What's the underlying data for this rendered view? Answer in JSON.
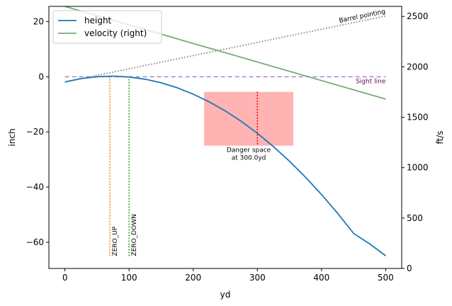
{
  "chart_data": {
    "type": "line",
    "title": "",
    "xlabel": "yd",
    "ylabel": "inch",
    "ylabel_right": "ft/s",
    "xlim": [
      -25,
      525
    ],
    "ylim": [
      -69.5,
      25.5
    ],
    "ylim_right": [
      0,
      2600
    ],
    "xticks": [
      0,
      100,
      200,
      300,
      400,
      500
    ],
    "yticks": [
      -60,
      -40,
      -20,
      0,
      20
    ],
    "yticks_right": [
      0,
      500,
      1000,
      1500,
      2000,
      2500
    ],
    "xtick_labels": [
      "0",
      "100",
      "200",
      "300",
      "400",
      "500"
    ],
    "ytick_labels": [
      "−60",
      "−40",
      "−20",
      "0",
      "20"
    ],
    "ytick_right_labels": [
      "0",
      "500",
      "1000",
      "1500",
      "2000",
      "2500"
    ],
    "grid": false,
    "legend_position": "top-left",
    "legend": [
      "height",
      "velocity (right)"
    ],
    "series": [
      {
        "name": "height",
        "axis": "left",
        "color": "#1f77b4",
        "x": [
          0,
          25,
          50,
          75,
          100,
          125,
          150,
          175,
          200,
          225,
          250,
          275,
          300,
          325,
          350,
          375,
          400,
          425,
          450,
          475,
          500
        ],
        "y": [
          -1.9,
          -0.7,
          0.0,
          0.2,
          -0.1,
          -0.9,
          -2.2,
          -4.0,
          -6.3,
          -9.1,
          -12.4,
          -16.2,
          -20.5,
          -25.3,
          -30.6,
          -36.4,
          -42.7,
          -49.5,
          -56.8,
          -60.6,
          -64.9
        ]
      },
      {
        "name": "velocity (right)",
        "axis": "right",
        "color": "#7aaa7a",
        "x": [
          0,
          500
        ],
        "y": [
          2600,
          1680
        ]
      }
    ],
    "reference_lines": {
      "barrel": {
        "label": "Barrel pointing",
        "color": "#808080",
        "x": [
          0,
          500
        ],
        "y": [
          -1.9,
          22.0
        ]
      },
      "sight": {
        "label": "Sight line",
        "color": "#9467bd",
        "x": [
          0,
          500
        ],
        "y": [
          0,
          0
        ]
      },
      "zero_up": {
        "label": "ZERO_UP",
        "color": "#ff7f0e",
        "x": 70,
        "y": [
          -65,
          0
        ]
      },
      "zero_down": {
        "label": "ZERO_DOWN",
        "color": "#2ca02c",
        "x": 100,
        "y": [
          -65,
          0
        ]
      }
    },
    "danger_space": {
      "label_line1": "Danger space",
      "label_line2": "at 300.0yd",
      "x_range": [
        217,
        356
      ],
      "y_range": [
        -25,
        -5.5
      ],
      "center_x": 300,
      "fill": "#ffb3b3",
      "marker_color": "#ff0000"
    }
  }
}
